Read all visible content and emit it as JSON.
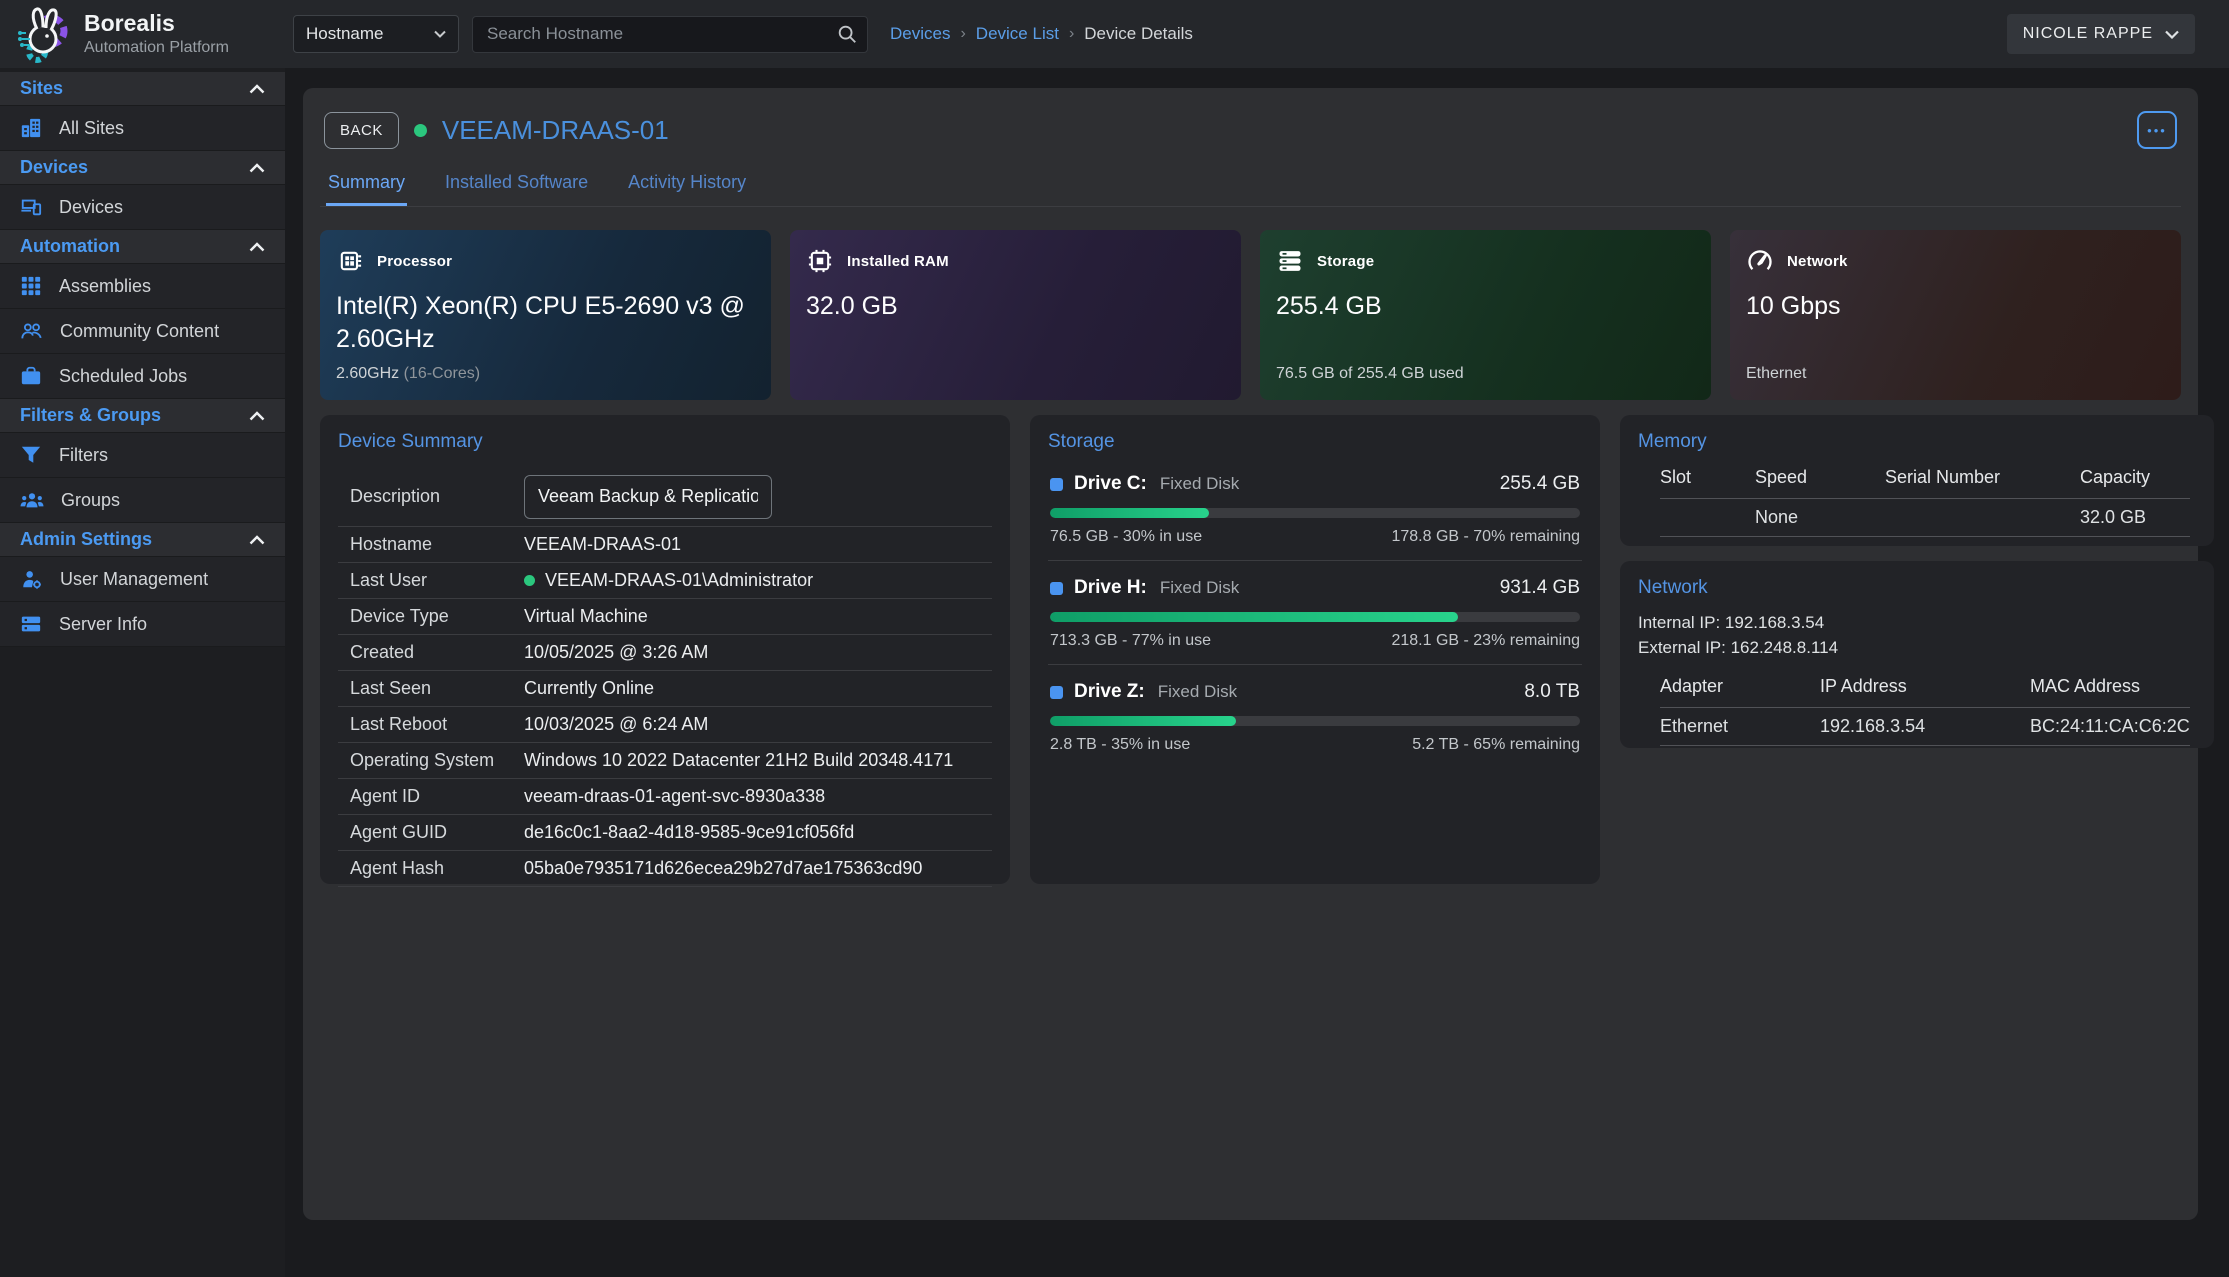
{
  "theme": {
    "accent_blue": "#4b9af2",
    "title_blue": "#4a90dd",
    "online_green": "#2bc77e",
    "progress_green": "#1fc77f",
    "card_bg": "#2e2f32",
    "panel_bg": "#222327",
    "sidebar_bg": "#232428",
    "topbar_bg": "#25272b",
    "cpu_card": "#1f3d59",
    "ram_card": "#342a4c",
    "storage_card": "#1e3f2f",
    "network_card": "#37303a"
  },
  "brand": {
    "name": "Borealis",
    "subtitle": "Automation Platform"
  },
  "topbar": {
    "filter_select": {
      "value": "Hostname"
    },
    "search": {
      "placeholder": "Search Hostname"
    },
    "breadcrumb": {
      "items": [
        "Devices",
        "Device List"
      ],
      "separator": "›",
      "current": "Device Details"
    },
    "user": {
      "name": "NICOLE RAPPE"
    }
  },
  "sidebar": {
    "sections": [
      {
        "label": "Sites",
        "items": [
          {
            "icon": "building",
            "label": "All Sites"
          }
        ]
      },
      {
        "label": "Devices",
        "items": [
          {
            "icon": "devices",
            "label": "Devices"
          }
        ]
      },
      {
        "label": "Automation",
        "items": [
          {
            "icon": "grid",
            "label": "Assemblies"
          },
          {
            "icon": "community",
            "label": "Community Content"
          },
          {
            "icon": "briefcase",
            "label": "Scheduled Jobs"
          }
        ]
      },
      {
        "label": "Filters & Groups",
        "items": [
          {
            "icon": "filter",
            "label": "Filters"
          },
          {
            "icon": "groups",
            "label": "Groups"
          }
        ]
      },
      {
        "label": "Admin Settings",
        "items": [
          {
            "icon": "user-gear",
            "label": "User Management"
          },
          {
            "icon": "server",
            "label": "Server Info"
          }
        ]
      }
    ]
  },
  "device": {
    "back_label": "BACK",
    "name": "VEEAM-DRAAS-01",
    "status": "online",
    "more_label": "•••",
    "tabs": [
      "Summary",
      "Installed Software",
      "Activity History"
    ],
    "active_tab": "Summary"
  },
  "stat_cards": [
    {
      "label": "Processor",
      "value": "Intel(R) Xeon(R) CPU E5-2690 v3 @ 2.60GHz",
      "footer": "2.60GHz ",
      "footer_dim": "(16-Cores)"
    },
    {
      "label": "Installed RAM",
      "value": "32.0 GB",
      "footer": "",
      "footer_dim": ""
    },
    {
      "label": "Storage",
      "value": "255.4 GB",
      "footer": "76.5 GB of 255.4 GB used",
      "footer_dim": ""
    },
    {
      "label": "Network",
      "value": "10 Gbps",
      "footer": "Ethernet",
      "footer_dim": ""
    }
  ],
  "summary": {
    "title": "Device Summary",
    "description_label": "Description",
    "description_value": "Veeam Backup & Replication",
    "rows": [
      {
        "label": "Hostname",
        "value": "VEEAM-DRAAS-01"
      },
      {
        "label": "Last User",
        "value": "VEEAM-DRAAS-01\\Administrator"
      },
      {
        "label": "Device Type",
        "value": "Virtual Machine"
      },
      {
        "label": "Created",
        "value": "10/05/2025 @ 3:26 AM"
      },
      {
        "label": "Last Seen",
        "value": "Currently Online"
      },
      {
        "label": "Last Reboot",
        "value": "10/03/2025 @ 6:24 AM"
      },
      {
        "label": "Operating System",
        "value": "Windows 10 2022 Datacenter 21H2 Build 20348.4171"
      },
      {
        "label": "Agent ID",
        "value": "veeam-draas-01-agent-svc-8930a338"
      },
      {
        "label": "Agent GUID",
        "value": "de16c0c1-8aa2-4d18-9585-9ce91cf056fd"
      },
      {
        "label": "Agent Hash",
        "value": "05ba0e7935171d626ecea29b27d7ae175363cd90"
      }
    ]
  },
  "storage_panel": {
    "title": "Storage",
    "drives": [
      {
        "name": "Drive C:",
        "type": "Fixed Disk",
        "size": "255.4 GB",
        "percent_used": 30,
        "used": "76.5 GB - 30% in use",
        "remaining": "178.8 GB - 70% remaining"
      },
      {
        "name": "Drive H:",
        "type": "Fixed Disk",
        "size": "931.4 GB",
        "percent_used": 77,
        "used": "713.3 GB - 77% in use",
        "remaining": "218.1 GB - 23% remaining"
      },
      {
        "name": "Drive Z:",
        "type": "Fixed Disk",
        "size": "8.0 TB",
        "percent_used": 35,
        "used": "2.8 TB - 35% in use",
        "remaining": "5.2 TB - 65% remaining"
      }
    ]
  },
  "memory_panel": {
    "title": "Memory",
    "headers": [
      "Slot",
      "Speed",
      "Serial Number",
      "Capacity"
    ],
    "rows": [
      [
        "",
        "None",
        "",
        "32.0 GB"
      ]
    ]
  },
  "network_panel": {
    "title": "Network",
    "internal_ip": "Internal IP: 192.168.3.54",
    "external_ip": "External IP: 162.248.8.114",
    "headers": [
      "Adapter",
      "IP Address",
      "MAC Address"
    ],
    "rows": [
      [
        "Ethernet",
        "192.168.3.54",
        "BC:24:11:CA:C6:2C"
      ]
    ]
  }
}
